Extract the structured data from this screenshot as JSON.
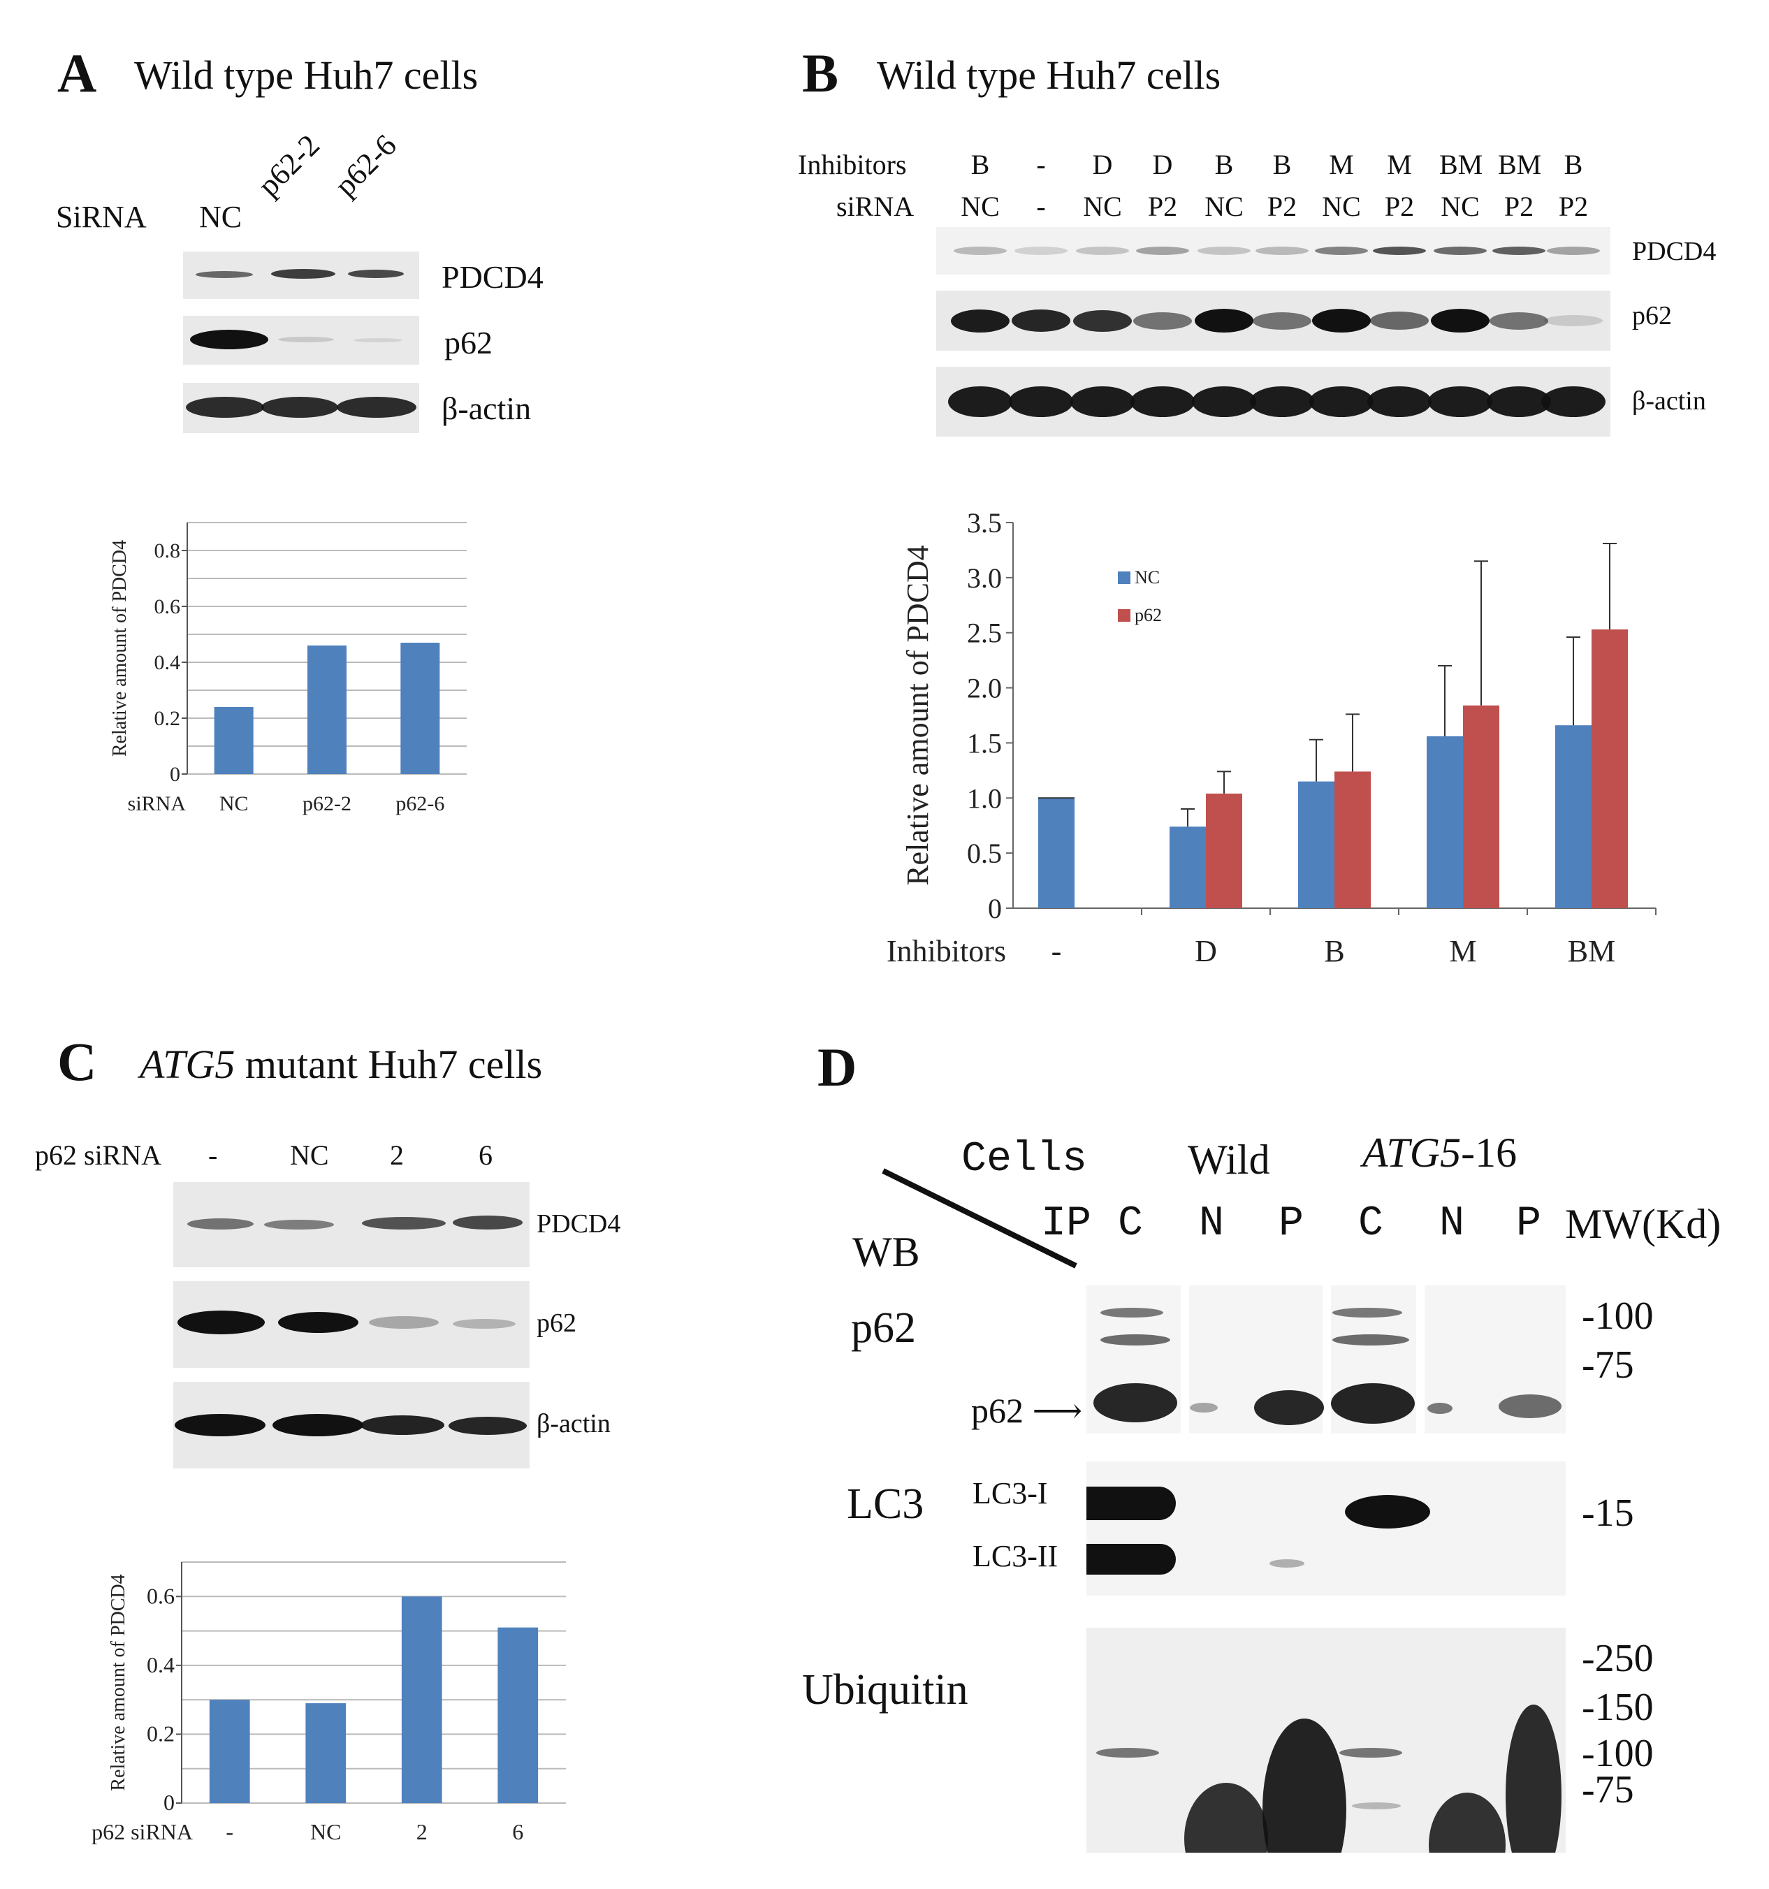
{
  "panelA": {
    "letter": "A",
    "title": "Wild type Huh7 cells",
    "sirna_label": "SiRNA",
    "lanes": [
      "NC",
      "p62-2",
      "p62-6"
    ],
    "blots": [
      "PDCD4",
      "p62",
      "β-actin"
    ],
    "chart_data": {
      "type": "bar",
      "categories": [
        "NC",
        "p62-2",
        "p62-6"
      ],
      "values": [
        0.24,
        0.46,
        0.47
      ],
      "ylabel": "Relative amount of PDCD4",
      "xlabel": "siRNA",
      "ylim": [
        0,
        0.9
      ],
      "yticks": [
        "0",
        "0.2",
        "0.4",
        "0.6",
        "0.8"
      ],
      "color": "#4f81bd",
      "grid": true
    }
  },
  "panelB": {
    "letter": "B",
    "title": "Wild type Huh7 cells",
    "inhibitors_label": "Inhibitors",
    "sirna_label": "siRNA",
    "inhibitors": [
      "B",
      "-",
      "D",
      "D",
      "B",
      "B",
      "M",
      "M",
      "BM",
      "BM",
      "B"
    ],
    "sirna": [
      "NC",
      "-",
      "NC",
      "P2",
      "NC",
      "P2",
      "NC",
      "P2",
      "NC",
      "P2",
      "P2"
    ],
    "blots": [
      "PDCD4",
      "p62",
      "β-actin"
    ],
    "chart_data": {
      "type": "bar",
      "categories": [
        "-",
        "D",
        "B",
        "M",
        "BM"
      ],
      "xlabel": "Inhibitors",
      "ylabel": "Relative amount of PDCD4",
      "ylim": [
        0,
        3.5
      ],
      "yticks": [
        "0",
        "0.5",
        "1.0",
        "1.5",
        "2.0",
        "2.5",
        "3.0",
        "3.5"
      ],
      "legend": "top-left",
      "series": [
        {
          "name": "NC",
          "color": "#4f81bd",
          "values": [
            1.0,
            0.74,
            1.15,
            1.56,
            1.66
          ],
          "errors": [
            0,
            0.16,
            0.38,
            0.64,
            0.8
          ]
        },
        {
          "name": "p62",
          "color": "#c0504d",
          "values": [
            null,
            1.04,
            1.24,
            1.84,
            2.53
          ],
          "errors": [
            0,
            0.2,
            0.52,
            1.31,
            0.78
          ]
        }
      ]
    }
  },
  "panelC": {
    "letter": "C",
    "title_italic": "ATG5",
    "title_rest": " mutant Huh7 cells",
    "sirna_label": "p62 siRNA",
    "lanes": [
      "-",
      "NC",
      "2",
      "6"
    ],
    "blots": [
      "PDCD4",
      "p62",
      "β-actin"
    ],
    "chart_data": {
      "type": "bar",
      "categories": [
        "-",
        "NC",
        "2",
        "6"
      ],
      "values": [
        0.3,
        0.29,
        0.6,
        0.51
      ],
      "ylabel": "Relative amount of PDCD4",
      "xlabel": "p62 siRNA",
      "ylim": [
        0,
        0.7
      ],
      "yticks": [
        "0",
        "0.2",
        "0.4",
        "0.6"
      ],
      "color": "#4f81bd",
      "grid": true
    }
  },
  "panelD": {
    "letter": "D",
    "cells_label": "Cells",
    "wild_label": "Wild",
    "mutant_italic": "ATG5",
    "mutant_rest": "-16",
    "ip_label": "IP",
    "wb_label": "WB",
    "lanes": [
      "C",
      "N",
      "P",
      "C",
      "N",
      "P"
    ],
    "mw_label": "MW(Kd)",
    "rows": [
      "p62",
      "LC3",
      "Ubiquitin"
    ],
    "p62_arrow": "p62",
    "lc3_bands": [
      "LC3-I",
      "LC3-II"
    ],
    "mw_p62": [
      "-100",
      "-75"
    ],
    "mw_lc3": [
      "-15"
    ],
    "mw_ub": [
      "-250",
      "-150",
      "-100",
      "-75"
    ]
  }
}
